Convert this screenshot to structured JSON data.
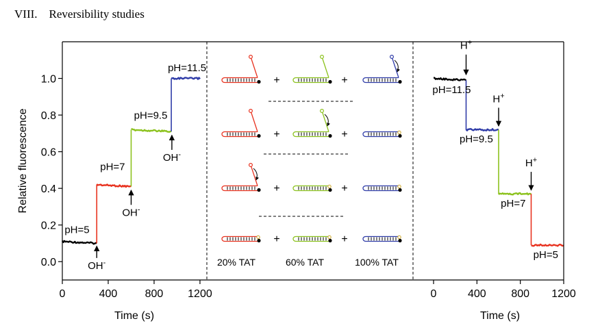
{
  "section": {
    "number": "VIII.",
    "title": "Reversibility studies"
  },
  "colors": {
    "black": "#000000",
    "red": "#e8321f",
    "green": "#8cc21e",
    "blue": "#2f3ca8"
  },
  "chart_data": [
    {
      "type": "line",
      "ylabel": "Relative fluorescence",
      "xlabel": "Time (s)",
      "xlim": [
        0,
        1260
      ],
      "ylim": [
        -0.1,
        1.2
      ],
      "xticks": [
        0,
        400,
        800,
        1200
      ],
      "yticks": [
        0.0,
        0.2,
        0.4,
        0.6,
        0.8,
        1.0
      ],
      "ytick_labels": [
        "0.0",
        "0.2",
        "0.4",
        "0.6",
        "0.8",
        "1.0"
      ],
      "segments": [
        {
          "color": "black",
          "x": [
            0,
            300
          ],
          "y": [
            0.11,
            0.1
          ]
        },
        {
          "color": "red",
          "x": [
            300,
            600
          ],
          "y": [
            0.42,
            0.41
          ]
        },
        {
          "color": "green",
          "x": [
            600,
            950
          ],
          "y": [
            0.72,
            0.71
          ]
        },
        {
          "color": "blue",
          "x": [
            950,
            1200
          ],
          "y": [
            1.0,
            1.0
          ]
        }
      ],
      "labels": [
        {
          "text": "pH=5",
          "x": 20,
          "y": 0.155
        },
        {
          "text": "pH=7",
          "x": 330,
          "y": 0.5
        },
        {
          "text": "pH=9.5",
          "x": 625,
          "y": 0.78
        },
        {
          "text": "pH=11.5",
          "x": 920,
          "y": 1.04
        }
      ],
      "arrows": [
        {
          "text": "OH",
          "sup": "-",
          "x": 300,
          "tip_y": 0.085,
          "tail_y": 0.02,
          "label_y": -0.04
        },
        {
          "text": "OH",
          "sup": "-",
          "x": 600,
          "tip_y": 0.39,
          "tail_y": 0.31,
          "label_y": 0.25
        },
        {
          "text": "OH",
          "sup": "-",
          "x": 955,
          "tip_y": 0.69,
          "tail_y": 0.61,
          "label_y": 0.55
        }
      ]
    },
    {
      "type": "line",
      "xlabel": "Time (s)",
      "xlim": [
        0,
        1200
      ],
      "ylim": [
        -0.1,
        1.2
      ],
      "xticks": [
        0,
        400,
        800,
        1200
      ],
      "segments": [
        {
          "color": "black",
          "x": [
            0,
            300
          ],
          "y": [
            1.0,
            0.99
          ]
        },
        {
          "color": "blue",
          "x": [
            300,
            600
          ],
          "y": [
            0.72,
            0.72
          ]
        },
        {
          "color": "green",
          "x": [
            600,
            900
          ],
          "y": [
            0.37,
            0.37
          ]
        },
        {
          "color": "red",
          "x": [
            900,
            1200
          ],
          "y": [
            0.09,
            0.09
          ]
        }
      ],
      "labels": [
        {
          "text": "pH=11.5",
          "x": -10,
          "y": 0.92
        },
        {
          "text": "pH=9.5",
          "x": 240,
          "y": 0.65
        },
        {
          "text": "pH=7",
          "x": 620,
          "y": 0.3
        },
        {
          "text": "pH=5",
          "x": 920,
          "y": 0.02
        }
      ],
      "arrows": [
        {
          "text": "H",
          "sup": "+",
          "x": 300,
          "tip_y": 1.02,
          "tail_y": 1.13,
          "label_y": 1.16
        },
        {
          "text": "H",
          "sup": "+",
          "x": 600,
          "tip_y": 0.74,
          "tail_y": 0.84,
          "label_y": 0.87
        },
        {
          "text": "H",
          "sup": "+",
          "x": 900,
          "tip_y": 0.39,
          "tail_y": 0.49,
          "label_y": 0.52
        }
      ]
    }
  ],
  "schematic": {
    "rows": [
      [
        "red-open",
        "green-open",
        "blue-closing"
      ],
      [
        "red-open",
        "green-closing",
        "blue-closed"
      ],
      [
        "red-closing",
        "green-closed",
        "blue-closed"
      ],
      [
        "red-closed",
        "green-closed",
        "blue-closed"
      ]
    ],
    "plus": "+",
    "captions": [
      "20% TAT",
      "60% TAT",
      "100% TAT"
    ]
  }
}
